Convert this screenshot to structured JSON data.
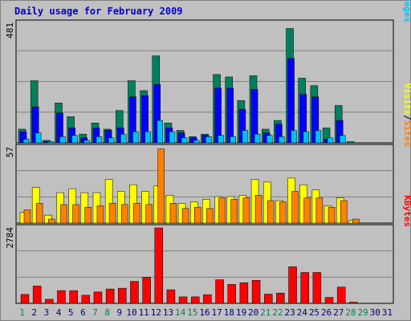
{
  "title": "Daily usage for February 2009",
  "colors": {
    "hits": "#00805c",
    "files": "#0000ff",
    "pages": "#00c0ff",
    "visits": "#ffff00",
    "sites": "#ff8000",
    "kbytes": "#ff0000",
    "title": "#0000cc",
    "weekend": "#00805c",
    "weekday": "#000080",
    "bg": "#c0c0c0",
    "grid": "#808080"
  },
  "chart_data": [
    {
      "type": "bar",
      "panel": "hits_files_pages",
      "ymax_label": "481",
      "ymax": 481,
      "legend": [
        {
          "text": "Hits",
          "color": "#00805c"
        },
        {
          "text": "/",
          "color": "#000000"
        },
        {
          "text": "Files",
          "color": "#0000ff"
        },
        {
          "text": "/",
          "color": "#000000"
        },
        {
          "text": "Pages",
          "color": "#00c0ff"
        }
      ],
      "x": [
        "1",
        "2",
        "3",
        "4",
        "5",
        "6",
        "7",
        "8",
        "9",
        "10",
        "11",
        "12",
        "13",
        "14",
        "15",
        "16",
        "17",
        "18",
        "19",
        "20",
        "21",
        "22",
        "23",
        "24",
        "25",
        "26",
        "27",
        "28",
        "29",
        "30",
        "31"
      ],
      "series": [
        {
          "name": "Hits",
          "values": [
            55,
            250,
            10,
            160,
            105,
            35,
            80,
            55,
            130,
            250,
            210,
            350,
            80,
            50,
            25,
            35,
            275,
            265,
            170,
            270,
            55,
            90,
            460,
            260,
            230,
            60,
            150,
            2,
            0,
            0,
            0
          ]
        },
        {
          "name": "Files",
          "values": [
            45,
            145,
            5,
            120,
            60,
            20,
            60,
            50,
            60,
            185,
            190,
            235,
            60,
            40,
            20,
            30,
            220,
            220,
            135,
            215,
            40,
            75,
            340,
            195,
            185,
            15,
            90,
            0,
            0,
            0,
            0
          ]
        },
        {
          "name": "Pages",
          "values": [
            15,
            40,
            3,
            25,
            30,
            10,
            25,
            20,
            35,
            45,
            45,
            90,
            45,
            20,
            10,
            25,
            30,
            25,
            50,
            35,
            30,
            25,
            50,
            45,
            50,
            20,
            30,
            0,
            0,
            0,
            0
          ]
        }
      ]
    },
    {
      "type": "bar",
      "panel": "visits_sites",
      "ymax_label": "57",
      "ymax": 57,
      "legend": [
        {
          "text": "Visits",
          "color": "#ffff00"
        },
        {
          "text": "/",
          "color": "#000000"
        },
        {
          "text": "Sites",
          "color": "#ff8000"
        }
      ],
      "x": [
        "1",
        "2",
        "3",
        "4",
        "5",
        "6",
        "7",
        "8",
        "9",
        "10",
        "11",
        "12",
        "13",
        "14",
        "15",
        "16",
        "17",
        "18",
        "19",
        "20",
        "21",
        "22",
        "23",
        "24",
        "25",
        "26",
        "27",
        "28",
        "29",
        "30",
        "31"
      ],
      "series": [
        {
          "name": "Visits",
          "values": [
            8,
            27,
            6,
            23,
            26,
            23,
            23,
            33,
            24,
            29,
            24,
            28,
            21,
            15,
            16,
            18,
            20,
            20,
            21,
            33,
            31,
            17,
            34,
            29,
            25,
            13,
            19,
            2,
            0,
            0,
            0
          ]
        },
        {
          "name": "Sites",
          "values": [
            10,
            15,
            3,
            14,
            14,
            12,
            13,
            15,
            14,
            15,
            14,
            56,
            15,
            11,
            12,
            11,
            19,
            18,
            19,
            21,
            17,
            16,
            24,
            19,
            19,
            12,
            17,
            3,
            0,
            0,
            0
          ]
        }
      ]
    },
    {
      "type": "bar",
      "panel": "kbytes",
      "ymax_label": "2784",
      "ymax": 2784,
      "legend": [
        {
          "text": "KBytes",
          "color": "#ff0000"
        }
      ],
      "x": [
        "1",
        "2",
        "3",
        "4",
        "5",
        "6",
        "7",
        "8",
        "9",
        "10",
        "11",
        "12",
        "13",
        "14",
        "15",
        "16",
        "17",
        "18",
        "19",
        "20",
        "21",
        "22",
        "23",
        "24",
        "25",
        "26",
        "27",
        "28",
        "29",
        "30",
        "31"
      ],
      "series": [
        {
          "name": "KBytes",
          "values": [
            330,
            640,
            150,
            470,
            470,
            300,
            420,
            530,
            560,
            810,
            970,
            2784,
            500,
            240,
            240,
            320,
            870,
            700,
            760,
            850,
            340,
            380,
            1350,
            1140,
            1140,
            220,
            600,
            30,
            0,
            0,
            0
          ]
        }
      ]
    }
  ],
  "days": [
    "1",
    "2",
    "3",
    "4",
    "5",
    "6",
    "7",
    "8",
    "9",
    "10",
    "11",
    "12",
    "13",
    "14",
    "15",
    "16",
    "17",
    "18",
    "19",
    "20",
    "21",
    "22",
    "23",
    "24",
    "25",
    "26",
    "27",
    "28",
    "29",
    "30",
    "31"
  ],
  "weekend_days": [
    "1",
    "7",
    "8",
    "14",
    "15",
    "21",
    "22",
    "28",
    "29"
  ]
}
